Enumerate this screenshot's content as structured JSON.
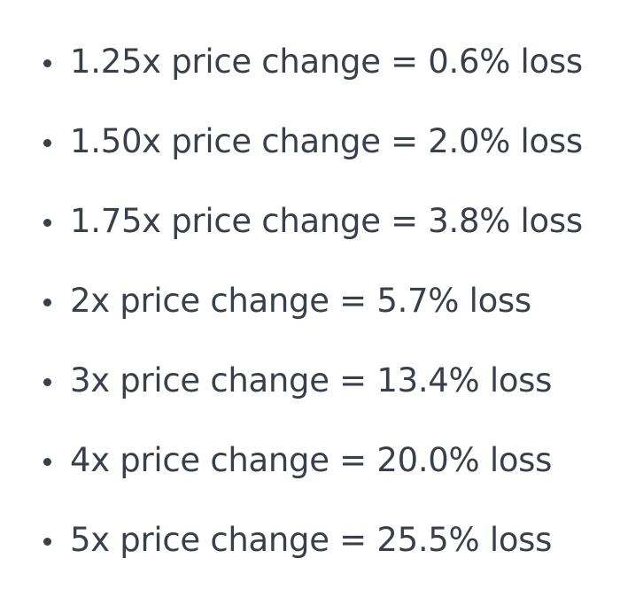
{
  "list": {
    "items": [
      {
        "text": "1.25x price change = 0.6% loss"
      },
      {
        "text": "1.50x price change = 2.0% loss"
      },
      {
        "text": "1.75x price change = 3.8% loss"
      },
      {
        "text": "2x price change = 5.7% loss"
      },
      {
        "text": "3x price change = 13.4% loss"
      },
      {
        "text": "4x price change = 20.0% loss"
      },
      {
        "text": "5x price change = 25.5% loss"
      }
    ]
  }
}
